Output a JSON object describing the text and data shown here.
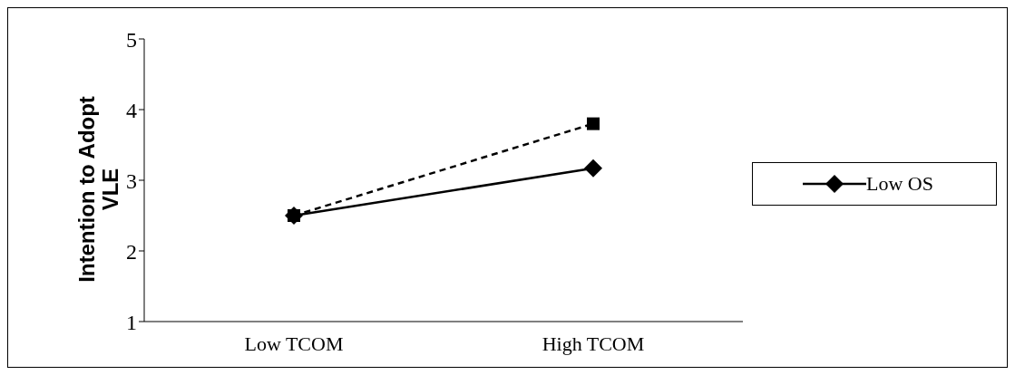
{
  "chart_data": {
    "type": "line",
    "ylabel": "Intention to Adopt VLE",
    "categories": [
      "Low TCOM",
      "High TCOM"
    ],
    "series": [
      {
        "name": "Low OS",
        "color": "#000000",
        "values": [
          2.5,
          3.17
        ],
        "marker": "diamond",
        "line_style": "solid"
      },
      {
        "color": "#000000",
        "values": [
          2.5,
          3.8
        ],
        "marker": "square",
        "line_style": "dashed"
      }
    ],
    "ylim": [
      1,
      5
    ],
    "yticks": [
      1,
      2,
      3,
      4,
      5
    ],
    "legend": "right"
  }
}
